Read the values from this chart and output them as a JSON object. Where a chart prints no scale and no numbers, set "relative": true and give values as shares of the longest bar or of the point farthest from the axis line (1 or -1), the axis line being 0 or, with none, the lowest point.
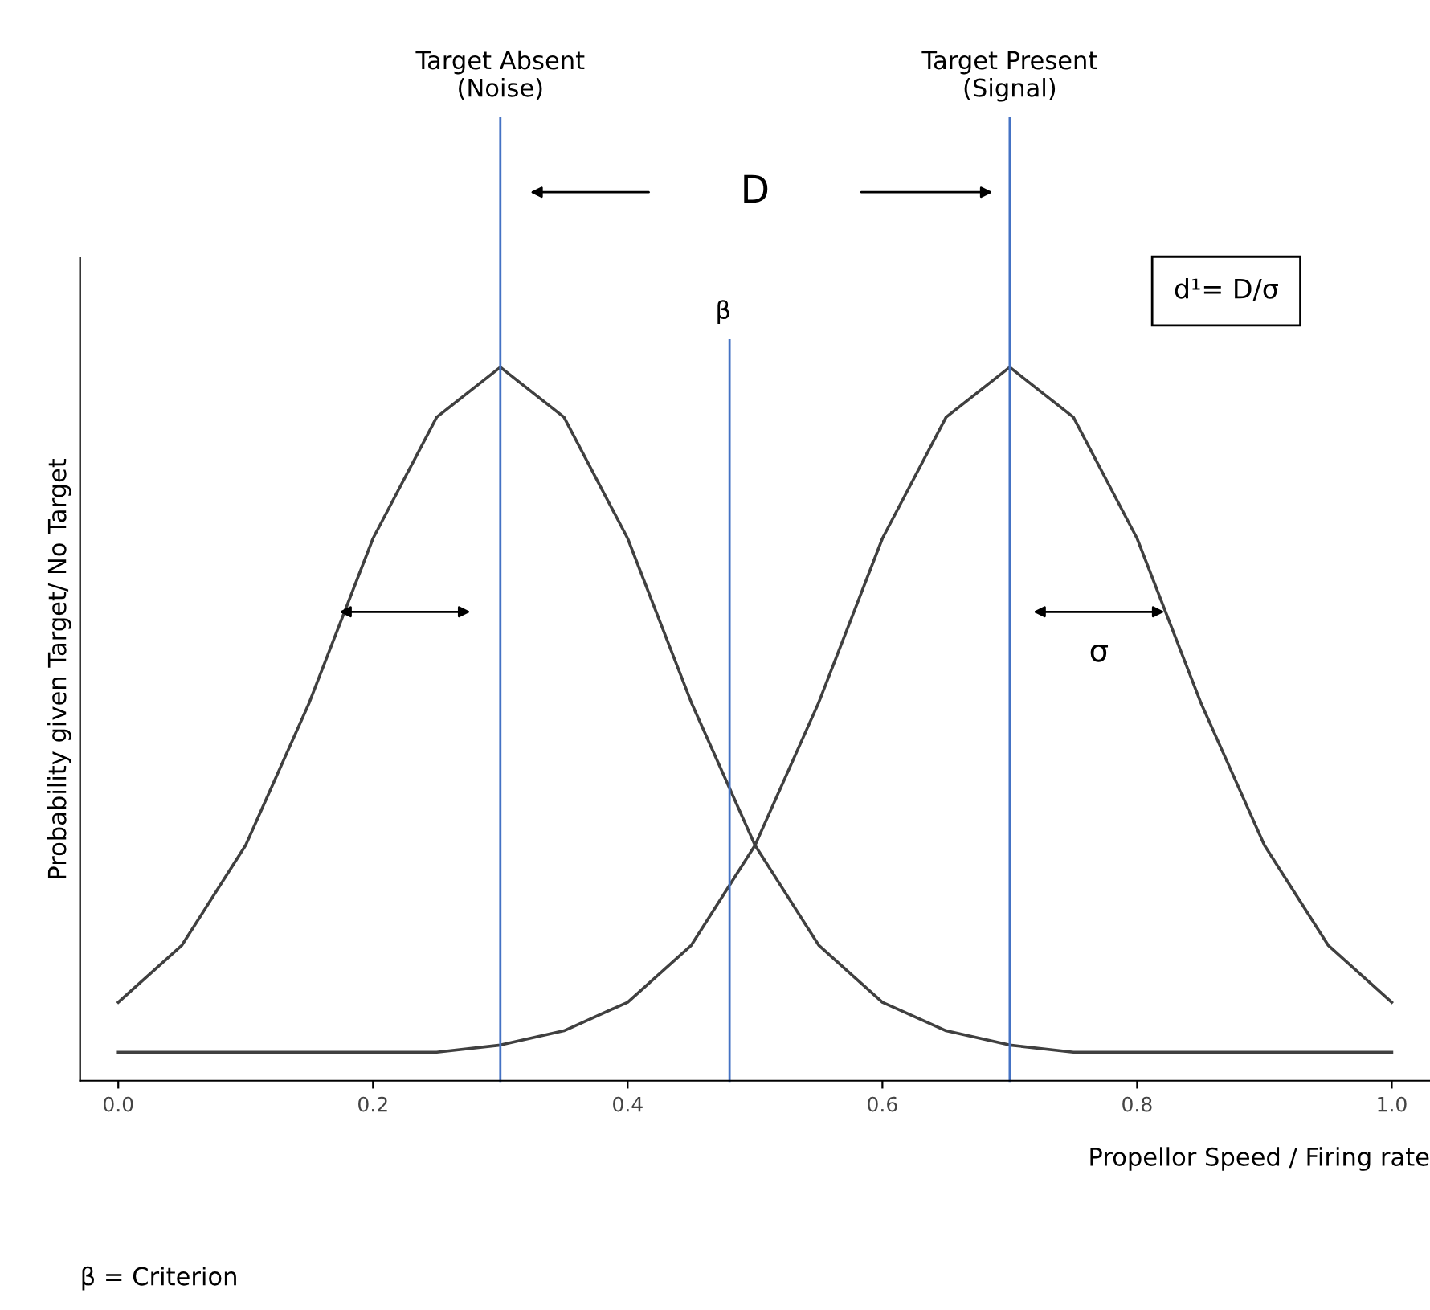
{
  "chart_data": {
    "type": "line",
    "relative": true,
    "xlabel": "Propellor Speed / Firing rate",
    "ylabel": "Probability given Target/ No Target",
    "x": [
      0,
      0.05,
      0.1,
      0.15,
      0.2,
      0.25,
      0.3,
      0.35,
      0.4,
      0.45,
      0.5,
      0.55,
      0.6,
      0.65,
      0.7,
      0.75,
      0.8,
      0.85,
      0.9,
      0.95,
      1.0
    ],
    "series": [
      {
        "color": "#404040",
        "values": [
          0.11,
          0.19,
          0.33,
          0.53,
          0.76,
          0.93,
          1,
          0.93,
          0.76,
          0.53,
          0.33,
          0.19,
          0.11,
          0.07,
          0.05,
          0.04,
          0.04,
          0.04,
          0.04,
          0.04,
          0.04
        ]
      },
      {
        "color": "#404040",
        "values": [
          0.04,
          0.04,
          0.04,
          0.04,
          0.04,
          0.04,
          0.05,
          0.07,
          0.11,
          0.19,
          0.33,
          0.53,
          0.76,
          0.93,
          1,
          0.93,
          0.76,
          0.53,
          0.33,
          0.19,
          0.11
        ]
      }
    ],
    "xlim": [
      -0.03,
      1.03
    ],
    "xticks": [
      {
        "value": 0,
        "label": "0.0"
      },
      0.2,
      0.4,
      0.6,
      0.8,
      {
        "value": 1,
        "label": "1.0"
      }
    ],
    "ref_lines": [
      {
        "axis": "x",
        "value": 0.3,
        "label": "Target Absent\n(Noise)",
        "color": "#4472c4"
      },
      {
        "axis": "x",
        "value": 0.48,
        "label": "β",
        "color": "#4472c4"
      },
      {
        "axis": "x",
        "value": 0.7,
        "label": "Target Present\n(Signal)",
        "color": "#4472c4"
      }
    ],
    "annotations": [
      "D",
      "σ",
      "d¹= D/σ",
      "β = Criterion"
    ],
    "grid": false,
    "legend": false,
    "marker": "none",
    "line_style": "solid"
  }
}
